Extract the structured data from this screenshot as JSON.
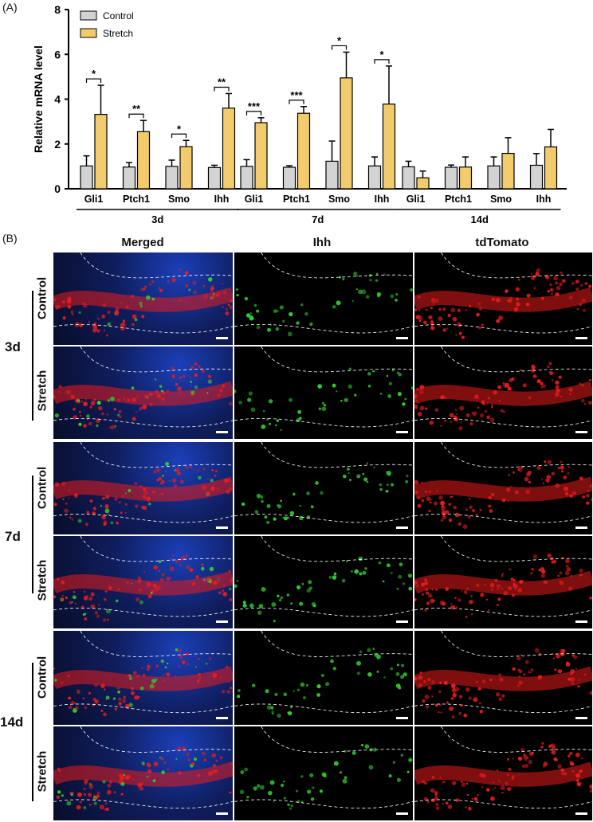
{
  "panel_a_label": "(A)",
  "panel_b_label": "(B)",
  "chart_data": {
    "type": "bar",
    "ylabel": "Relative mRNA level",
    "ylim": [
      0,
      8
    ],
    "yticks": [
      "0",
      "2",
      "4",
      "6",
      "8"
    ],
    "legend": [
      {
        "name": "Control",
        "color": "#d3d3d3"
      },
      {
        "name": "Stretch",
        "color": "#f2cc6c"
      }
    ],
    "groups": [
      {
        "label": "3d",
        "categories": [
          "Gli1",
          "Ptch1",
          "Smo",
          "Ihh"
        ],
        "control": [
          1.02,
          0.97,
          1.0,
          0.95
        ],
        "control_err": [
          0.45,
          0.2,
          0.28,
          0.1
        ],
        "stretch": [
          3.32,
          2.55,
          1.88,
          3.6
        ],
        "stretch_err": [
          1.3,
          0.5,
          0.28,
          0.65
        ],
        "significance": [
          "*",
          "**",
          "*",
          "**"
        ]
      },
      {
        "label": "7d",
        "categories": [
          "Gli1",
          "Ptch1",
          "Smo",
          "Ihh"
        ],
        "control": [
          1.0,
          0.96,
          1.23,
          1.02
        ],
        "control_err": [
          0.3,
          0.07,
          0.9,
          0.4
        ],
        "stretch": [
          2.95,
          3.37,
          4.95,
          3.78
        ],
        "stretch_err": [
          0.22,
          0.3,
          1.15,
          1.7
        ],
        "significance": [
          "***",
          "***",
          "*",
          "*"
        ]
      },
      {
        "label": "14d",
        "categories": [
          "Gli1",
          "Ptch1",
          "Smo",
          "Ihh"
        ],
        "control": [
          0.98,
          0.96,
          1.02,
          1.05
        ],
        "control_err": [
          0.25,
          0.1,
          0.4,
          0.52
        ],
        "stretch": [
          0.49,
          0.97,
          1.58,
          1.87
        ],
        "stretch_err": [
          0.3,
          0.45,
          0.7,
          0.78
        ],
        "significance": [
          "",
          "",
          "",
          ""
        ]
      }
    ]
  },
  "panel_b": {
    "columns": [
      "Merged",
      "Ihh",
      "tdTomato"
    ],
    "timepoints": [
      "3d",
      "7d",
      "14d"
    ],
    "rows": [
      "Control",
      "Stretch"
    ]
  },
  "colors": {
    "merged_bg": "#1a2a6e",
    "ihh_signal": "#2fd02f",
    "tdtomato_signal": "#e81c1c"
  }
}
